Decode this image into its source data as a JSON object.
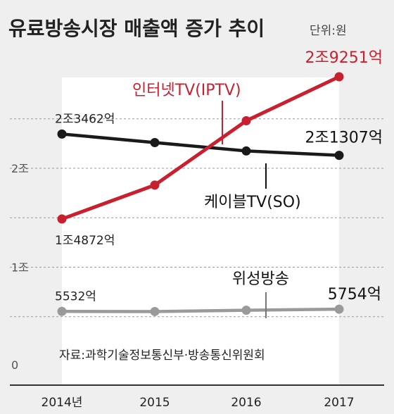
{
  "chart_data": {
    "type": "line",
    "title": "유료방송시장 매출액 증가 추이",
    "unit": "단위:원",
    "x": [
      "2014년",
      "2015",
      "2016",
      "2017"
    ],
    "y_ticks": [
      {
        "value": 0,
        "label": "0"
      },
      {
        "value": 10000,
        "label": "1조"
      },
      {
        "value": 20000,
        "label": "2조"
      }
    ],
    "ylim": [
      0,
      30000
    ],
    "series": [
      {
        "name": "인터넷TV(IPTV)",
        "color": "#c8202f",
        "values": [
          14872,
          18300,
          24800,
          29251
        ],
        "labels": [
          {
            "index": 0,
            "text": "1조4872억"
          },
          {
            "index": 3,
            "text": "2조9251억"
          }
        ]
      },
      {
        "name": "케이블TV(SO)",
        "color": "#1a1a1a",
        "values": [
          23462,
          22600,
          21750,
          21307
        ],
        "labels": [
          {
            "index": 0,
            "text": "2조3462억"
          },
          {
            "index": 3,
            "text": "2조1307억"
          }
        ]
      },
      {
        "name": "위성방송",
        "color": "#9a9a9a",
        "values": [
          5532,
          5520,
          5650,
          5754
        ],
        "labels": [
          {
            "index": 0,
            "text": "5532억"
          },
          {
            "index": 3,
            "text": "5754억"
          }
        ]
      }
    ],
    "source": "자료:과학기술정보통신부·방송통신위원회",
    "grid": true
  }
}
